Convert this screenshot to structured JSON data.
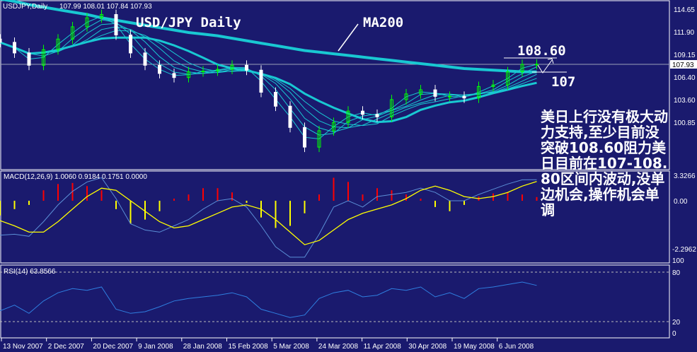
{
  "header": {
    "symbol": "USDJPY,Daily",
    "ohlc": "107.99 108.01 107.84 107.93"
  },
  "annotations": {
    "title": "USD/JPY Daily",
    "ma_label": "MA200",
    "resistance": "108.60",
    "support": "107",
    "commentary": "美日上行没有极大动力支持,至少目前没突破108.60阻力美日目前在107-108.80区间内波动,没单边机会,操作机会单调"
  },
  "colors": {
    "background": "#1a1a6e",
    "ma": "#19c8d2",
    "bull": "#00ff00",
    "bear": "#ffffff",
    "macd_pos": "#ff0000",
    "macd_neg": "#ffff00",
    "signal": "#ffff00",
    "macd_line": "#5b8fd6",
    "rsi": "#2f7fe0"
  },
  "chart_data": [
    {
      "type": "candlestick",
      "panel": "price",
      "title": "USDJPY,Daily",
      "y_ticks": [
        "114.65",
        "111.90",
        "109.15",
        "106.40",
        "103.60",
        "100.85"
      ],
      "current_price": "107.93",
      "ylim": [
        95,
        116
      ],
      "x_tick_labels": [
        "13 Nov 2007",
        "2 Dec 2007",
        "20 Dec 2007",
        "9 Jan 2008",
        "28 Jan 2008",
        "15 Feb 2008",
        "5 Mar 2008",
        "24 Mar 2008",
        "11 Apr 2008",
        "30 Apr 2008",
        "19 May 2008",
        "6 Jun 2008"
      ],
      "close": [
        110.6,
        109.3,
        107.8,
        109.7,
        111.0,
        112.5,
        113.6,
        114.0,
        111.5,
        109.3,
        107.8,
        106.8,
        106.3,
        107.0,
        107.1,
        107.3,
        107.8,
        107.2,
        104.5,
        102.8,
        100.2,
        97.8,
        99.8,
        100.8,
        102.2,
        101.8,
        101.5,
        103.6,
        104.3,
        104.8,
        104.0,
        104.0,
        103.8,
        105.2,
        105.4,
        107.0,
        107.9,
        107.93
      ],
      "ma200": [
        115.9,
        115.6,
        115.2,
        114.9,
        114.6,
        114.3,
        114.0,
        113.6,
        113.3,
        113.0,
        112.7,
        112.4,
        112.1,
        111.8,
        111.6,
        111.4,
        111.1,
        110.8,
        110.5,
        110.2,
        109.9,
        109.6,
        109.4,
        109.2,
        109.0,
        108.8,
        108.6,
        108.4,
        108.2,
        108.0,
        107.8,
        107.6,
        107.4,
        107.3,
        107.2,
        107.1,
        107.0,
        107.0
      ]
    },
    {
      "type": "macd",
      "panel": "MACD",
      "label": "MACD(12,26,9) 1.0060 0.9184 0.1751 0.0000",
      "y_ticks": [
        "3.3266",
        "0.00",
        "-2.2962"
      ],
      "histogram": [
        -0.7,
        -0.4,
        -0.2,
        0.5,
        0.8,
        0.85,
        0.7,
        0.5,
        -0.4,
        -1.1,
        -0.9,
        -0.5,
        0.1,
        0.3,
        0.6,
        0.6,
        0.4,
        -0.1,
        -0.8,
        -1.3,
        -1.2,
        -0.6,
        0.3,
        1.1,
        0.9,
        0.3,
        0.6,
        0.5,
        0.3,
        0.1,
        -0.3,
        -0.5,
        -0.2,
        0.2,
        0.35,
        0.4,
        0.3,
        0.1751
      ],
      "signal": [
        -0.95,
        -1.2,
        -1.5,
        -1.5,
        -1.0,
        -0.4,
        0.2,
        0.6,
        0.5,
        0.0,
        -0.5,
        -1.0,
        -1.3,
        -1.2,
        -0.9,
        -0.6,
        -0.3,
        -0.2,
        -0.4,
        -0.9,
        -1.5,
        -2.1,
        -1.9,
        -1.4,
        -0.9,
        -0.6,
        -0.4,
        -0.2,
        0.1,
        0.5,
        0.7,
        0.5,
        0.2,
        0.1,
        0.2,
        0.4,
        0.7,
        0.9184
      ],
      "main": [
        -1.65,
        -1.6,
        -1.7,
        -1.0,
        -0.2,
        0.45,
        0.9,
        1.1,
        0.1,
        -1.1,
        -1.4,
        -1.5,
        -1.2,
        -0.9,
        -0.4,
        0.0,
        0.1,
        -0.3,
        -1.2,
        -2.2,
        -2.7,
        -2.7,
        -1.6,
        -0.3,
        0.0,
        -0.3,
        0.2,
        0.3,
        0.4,
        0.6,
        0.4,
        0.0,
        0.0,
        0.3,
        0.55,
        0.8,
        1.0,
        1.006
      ]
    },
    {
      "type": "line",
      "panel": "RSI",
      "label": "RSI(14) 63.8566",
      "y_ticks": [
        "100",
        "80",
        "20",
        "0"
      ],
      "levels": [
        80,
        20
      ],
      "ylim": [
        0,
        100
      ],
      "values": [
        33,
        40,
        30,
        45,
        55,
        60,
        58,
        62,
        35,
        30,
        32,
        38,
        45,
        48,
        50,
        52,
        55,
        50,
        35,
        30,
        25,
        28,
        48,
        55,
        58,
        50,
        52,
        60,
        58,
        62,
        50,
        55,
        48,
        60,
        62,
        65,
        68,
        63.8566
      ]
    }
  ]
}
